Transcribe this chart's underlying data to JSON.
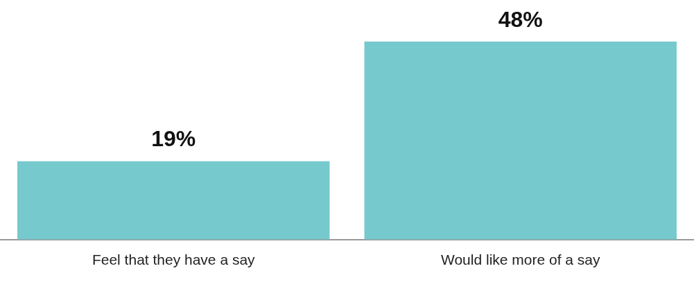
{
  "chart_data": {
    "type": "bar",
    "categories": [
      "Feel that they have a say",
      "Would like more of a say"
    ],
    "values": [
      19,
      48
    ],
    "color": "#76c9cc",
    "value_labels": [
      "19%",
      "48%"
    ],
    "grid": false,
    "legend": false
  }
}
